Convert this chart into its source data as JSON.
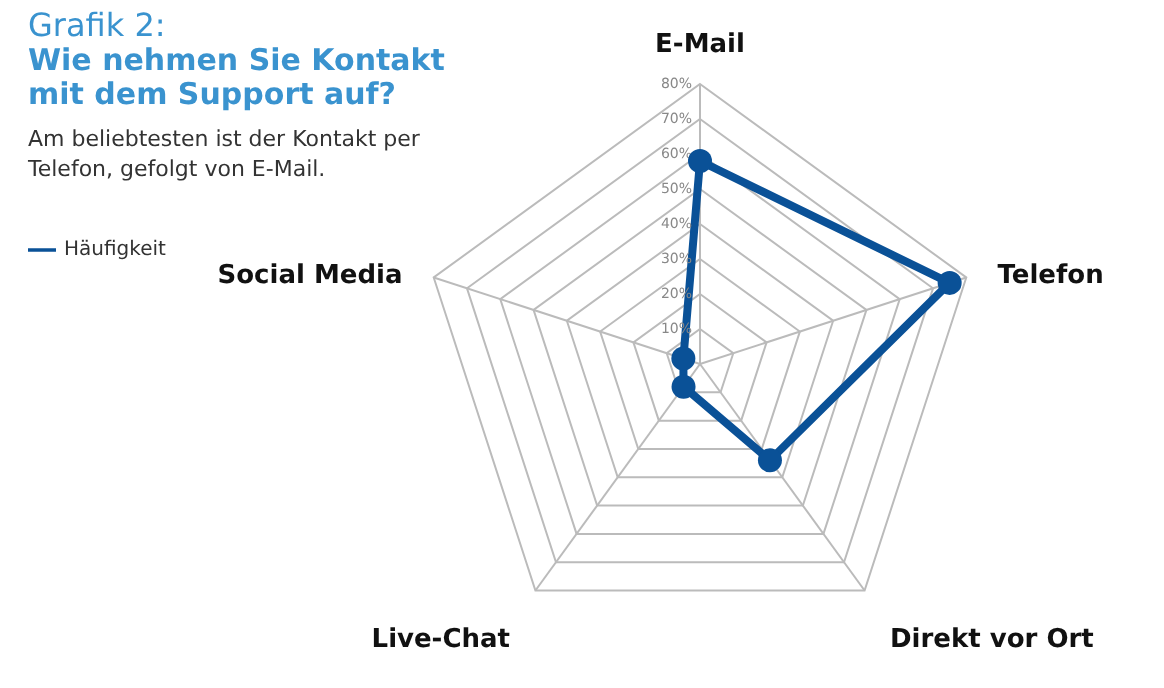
{
  "chart_data": {
    "type": "radar",
    "title": "Wie nehmen Sie Kontakt mit dem Support auf?",
    "subtitle": "Am beliebtesten ist der Kontakt per Telefon, gefolgt von E-Mail.",
    "annotations": [
      "Grafik 2:"
    ],
    "categories": [
      "E-Mail",
      "Telefon",
      "Direkt vor Ort",
      "Live-Chat",
      "Social Media"
    ],
    "series": [
      {
        "name": "Häufigkeit",
        "color": "#0a5197",
        "values": [
          58,
          75,
          34,
          8,
          5
        ]
      }
    ],
    "ylim": [
      0,
      80
    ],
    "yticks": [
      {
        "value": 10,
        "label": "10%"
      },
      {
        "value": 20,
        "label": "20%"
      },
      {
        "value": 30,
        "label": "30%"
      },
      {
        "value": 40,
        "label": "40%"
      },
      {
        "value": 50,
        "label": "50%"
      },
      {
        "value": 60,
        "label": "60%"
      },
      {
        "value": 70,
        "label": "70%"
      },
      {
        "value": 80,
        "label": "80%"
      }
    ],
    "grid": true,
    "legend": "top left",
    "marker": "circle",
    "line_style": "solid"
  }
}
